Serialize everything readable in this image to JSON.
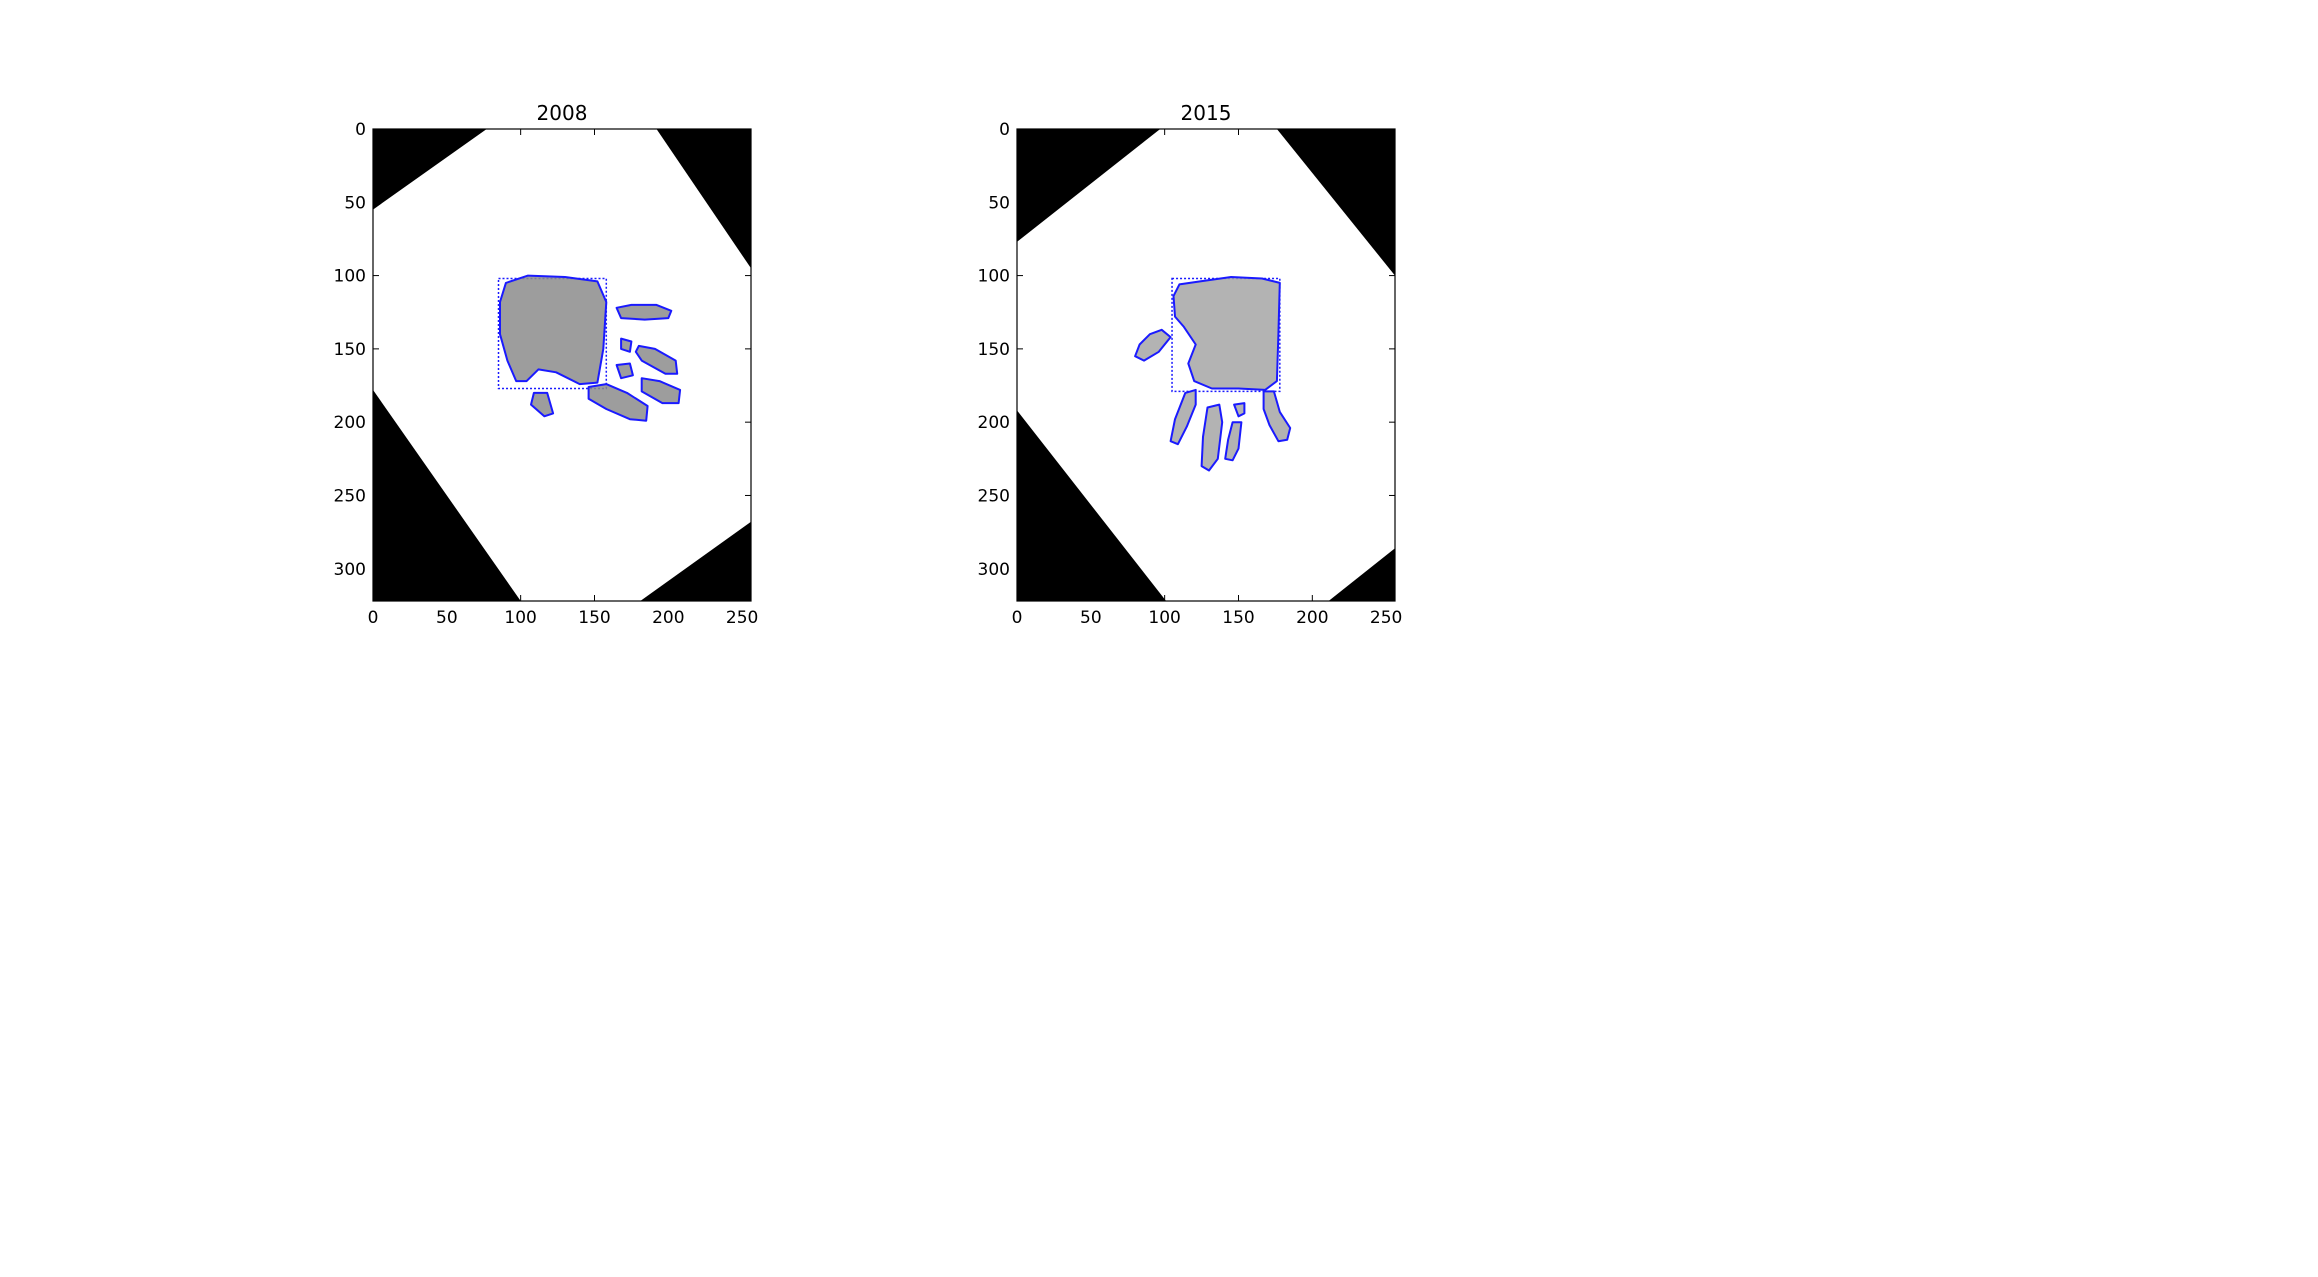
{
  "chart_data": [
    {
      "type": "image",
      "title": "2008",
      "xlim": [
        0,
        256
      ],
      "ylim": [
        322,
        0
      ],
      "xticks": [
        0,
        50,
        100,
        150,
        200,
        250
      ],
      "yticks": [
        0,
        50,
        100,
        150,
        200,
        250,
        300
      ],
      "xtick_labels": [
        "0",
        "50",
        "100",
        "150",
        "200",
        "250"
      ],
      "ytick_labels": [
        "0",
        "50",
        "100",
        "150",
        "200",
        "250",
        "300"
      ],
      "bounding_box": {
        "x0": 85,
        "y0": 102,
        "x1": 158,
        "y1": 177
      },
      "colors": {
        "contour": "#1a1aff",
        "mask": "#000000",
        "print": "#8c8c8c"
      },
      "black_corners": [
        [
          [
            0,
            0
          ],
          [
            77,
            0
          ],
          [
            0,
            55
          ]
        ],
        [
          [
            192,
            0
          ],
          [
            256,
            0
          ],
          [
            256,
            95
          ]
        ],
        [
          [
            0,
            178
          ],
          [
            0,
            322
          ],
          [
            100,
            322
          ]
        ],
        [
          [
            181,
            322
          ],
          [
            256,
            268
          ],
          [
            256,
            322
          ]
        ]
      ],
      "blobs": [
        [
          [
            90,
            105
          ],
          [
            105,
            100
          ],
          [
            130,
            101
          ],
          [
            152,
            104
          ],
          [
            158,
            118
          ],
          [
            156,
            150
          ],
          [
            152,
            173
          ],
          [
            140,
            174
          ],
          [
            124,
            166
          ],
          [
            112,
            164
          ],
          [
            104,
            172
          ],
          [
            97,
            172
          ],
          [
            91,
            158
          ],
          [
            86,
            140
          ],
          [
            86,
            118
          ]
        ],
        [
          [
            109,
            180
          ],
          [
            118,
            180
          ],
          [
            122,
            194
          ],
          [
            116,
            196
          ],
          [
            107,
            188
          ]
        ],
        [
          [
            165,
            122
          ],
          [
            175,
            120
          ],
          [
            192,
            120
          ],
          [
            202,
            124
          ],
          [
            200,
            129
          ],
          [
            184,
            130
          ],
          [
            168,
            129
          ]
        ],
        [
          [
            168,
            143
          ],
          [
            175,
            145
          ],
          [
            174,
            152
          ],
          [
            168,
            150
          ]
        ],
        [
          [
            180,
            148
          ],
          [
            191,
            150
          ],
          [
            205,
            158
          ],
          [
            206,
            167
          ],
          [
            198,
            167
          ],
          [
            182,
            158
          ],
          [
            178,
            152
          ]
        ],
        [
          [
            165,
            161
          ],
          [
            174,
            160
          ],
          [
            176,
            168
          ],
          [
            168,
            170
          ]
        ],
        [
          [
            182,
            170
          ],
          [
            194,
            172
          ],
          [
            208,
            178
          ],
          [
            207,
            187
          ],
          [
            196,
            187
          ],
          [
            182,
            179
          ]
        ],
        [
          [
            146,
            176
          ],
          [
            158,
            174
          ],
          [
            172,
            180
          ],
          [
            186,
            189
          ],
          [
            185,
            199
          ],
          [
            174,
            198
          ],
          [
            158,
            191
          ],
          [
            146,
            184
          ]
        ]
      ]
    },
    {
      "type": "image",
      "title": "2015",
      "xlim": [
        0,
        256
      ],
      "ylim": [
        322,
        0
      ],
      "xticks": [
        0,
        50,
        100,
        150,
        200,
        250
      ],
      "yticks": [
        0,
        50,
        100,
        150,
        200,
        250,
        300
      ],
      "xtick_labels": [
        "0",
        "50",
        "100",
        "150",
        "200",
        "250"
      ],
      "ytick_labels": [
        "0",
        "50",
        "100",
        "150",
        "200",
        "250",
        "300"
      ],
      "bounding_box": {
        "x0": 105,
        "y0": 102,
        "x1": 178,
        "y1": 179
      },
      "colors": {
        "contour": "#1a1aff",
        "mask": "#000000",
        "print": "#a6a6a6"
      },
      "black_corners": [
        [
          [
            0,
            0
          ],
          [
            97,
            0
          ],
          [
            0,
            77
          ]
        ],
        [
          [
            176,
            0
          ],
          [
            256,
            0
          ],
          [
            256,
            100
          ]
        ],
        [
          [
            0,
            192
          ],
          [
            0,
            322
          ],
          [
            101,
            322
          ]
        ],
        [
          [
            211,
            322
          ],
          [
            256,
            286
          ],
          [
            256,
            322
          ]
        ]
      ],
      "blobs": [
        [
          [
            110,
            106
          ],
          [
            124,
            104
          ],
          [
            145,
            101
          ],
          [
            166,
            102
          ],
          [
            178,
            105
          ],
          [
            177,
            140
          ],
          [
            176,
            172
          ],
          [
            168,
            178
          ],
          [
            150,
            177
          ],
          [
            132,
            177
          ],
          [
            120,
            172
          ],
          [
            116,
            160
          ],
          [
            121,
            147
          ],
          [
            113,
            135
          ],
          [
            107,
            128
          ],
          [
            106,
            114
          ]
        ],
        [
          [
            90,
            140
          ],
          [
            98,
            137
          ],
          [
            104,
            142
          ],
          [
            96,
            152
          ],
          [
            86,
            158
          ],
          [
            80,
            155
          ],
          [
            83,
            147
          ]
        ],
        [
          [
            114,
            180
          ],
          [
            121,
            178
          ],
          [
            121,
            188
          ],
          [
            115,
            203
          ],
          [
            109,
            215
          ],
          [
            104,
            213
          ],
          [
            107,
            198
          ]
        ],
        [
          [
            129,
            190
          ],
          [
            137,
            188
          ],
          [
            139,
            200
          ],
          [
            136,
            225
          ],
          [
            130,
            233
          ],
          [
            125,
            230
          ],
          [
            126,
            210
          ]
        ],
        [
          [
            147,
            188
          ],
          [
            154,
            187
          ],
          [
            154,
            194
          ],
          [
            150,
            196
          ]
        ],
        [
          [
            146,
            200
          ],
          [
            152,
            200
          ],
          [
            150,
            218
          ],
          [
            146,
            226
          ],
          [
            141,
            225
          ],
          [
            143,
            212
          ]
        ],
        [
          [
            167,
            179
          ],
          [
            174,
            179
          ],
          [
            178,
            193
          ],
          [
            185,
            204
          ],
          [
            183,
            212
          ],
          [
            177,
            213
          ],
          [
            171,
            202
          ],
          [
            167,
            191
          ]
        ]
      ]
    }
  ]
}
